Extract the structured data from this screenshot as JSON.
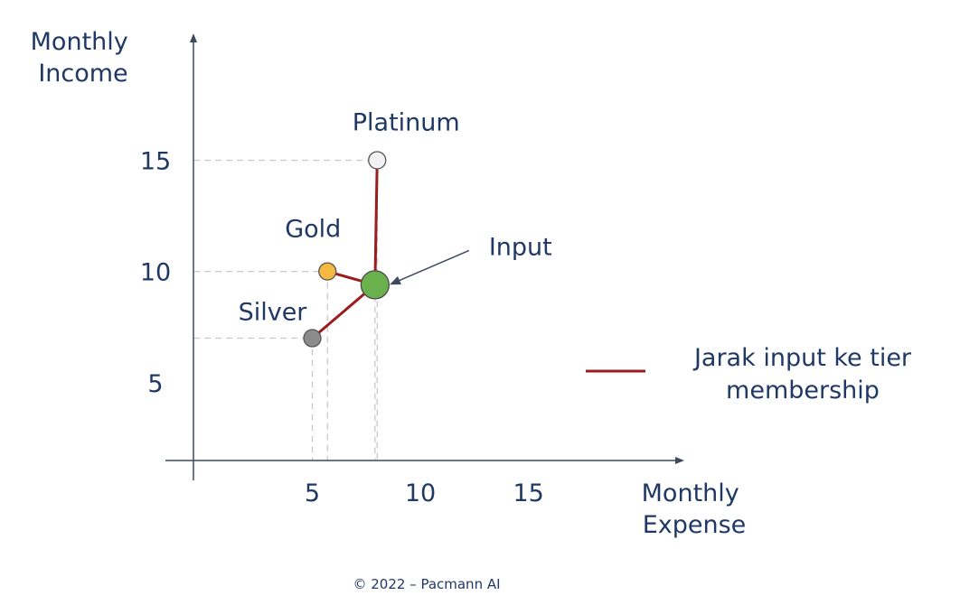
{
  "chart_data": {
    "type": "scatter",
    "xlabel": "Monthly Expense",
    "ylabel": "Monthly Income",
    "x_ticks": [
      5,
      10,
      15
    ],
    "y_ticks": [
      5,
      10,
      15
    ],
    "xlim": [
      -0.5,
      22
    ],
    "ylim": [
      1.5,
      20.5
    ],
    "grid": false,
    "points": [
      {
        "label": "Platinum",
        "x": 8.0,
        "y": 15.0,
        "color": "#f2f2f2"
      },
      {
        "label": "Gold",
        "x": 5.7,
        "y": 10.0,
        "color": "#f4b942"
      },
      {
        "label": "Silver",
        "x": 5.0,
        "y": 7.0,
        "color": "#8c8c8c"
      },
      {
        "label": "Input",
        "x": 7.9,
        "y": 9.4,
        "color": "#6ab04c"
      }
    ],
    "input_label": "Input",
    "distance_color": "#9b1c1c",
    "legend": {
      "line_label_1": "Jarak input ke tier",
      "line_label_2": "membership",
      "placement": "right"
    },
    "axis_color": "#3d4a5c",
    "guide_color": "#c8c8c8"
  },
  "footer": {
    "copyright": "© 2022 – Pacmann AI"
  }
}
